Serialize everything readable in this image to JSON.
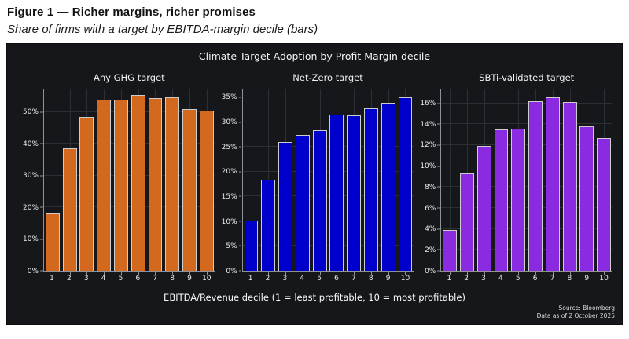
{
  "header": {
    "title": "Figure 1 — Richer margins, richer promises",
    "subtitle": "Share of firms with a target by EBITDA-margin decile (bars)"
  },
  "chart": {
    "title": "Climate Target Adoption by Profit Margin decile",
    "xlabel": "EBITDA/Revenue decile (1 = least profitable, 10 = most profitable)",
    "source_line1": "Source: Bloomberg",
    "source_line2": "Data as of 2 October 2025",
    "background_color": "#15171b",
    "grid_color": "#2c2f36",
    "spine_color": "#8f9297",
    "bar_edge_color": "#cdcdcd"
  },
  "chart_data": [
    {
      "type": "bar",
      "title": "Any GHG target",
      "color": "#d2691e",
      "categories": [
        "1",
        "2",
        "3",
        "4",
        "5",
        "6",
        "7",
        "8",
        "9",
        "10"
      ],
      "values": [
        18,
        38.5,
        48.5,
        54,
        54,
        55.4,
        54.5,
        54.6,
        51,
        50.4
      ],
      "yticks": [
        0,
        10,
        20,
        30,
        40,
        50
      ],
      "ylim": [
        0,
        57.4
      ],
      "ytick_suffix": "%",
      "grid": true,
      "legend": "none"
    },
    {
      "type": "bar",
      "title": "Net-Zero target",
      "color": "#0000cd",
      "categories": [
        "1",
        "2",
        "3",
        "4",
        "5",
        "6",
        "7",
        "8",
        "9",
        "10"
      ],
      "values": [
        10.1,
        18.4,
        26,
        27.5,
        28.4,
        31.6,
        31.4,
        32.9,
        34,
        35
      ],
      "yticks": [
        0,
        5,
        10,
        15,
        20,
        25,
        30,
        35
      ],
      "ylim": [
        0,
        36.8
      ],
      "ytick_suffix": "%",
      "grid": true,
      "legend": "none"
    },
    {
      "type": "bar",
      "title": "SBTi-validated target",
      "color": "#8a2be2",
      "categories": [
        "1",
        "2",
        "3",
        "4",
        "5",
        "6",
        "7",
        "8",
        "9",
        "10"
      ],
      "values": [
        3.9,
        9.3,
        11.9,
        13.5,
        13.6,
        16.2,
        16.6,
        16.1,
        13.8,
        12.7
      ],
      "yticks": [
        0,
        2,
        4,
        6,
        8,
        10,
        12,
        14,
        16
      ],
      "ylim": [
        0,
        17.4
      ],
      "ytick_suffix": "%",
      "grid": true,
      "legend": "none"
    }
  ]
}
